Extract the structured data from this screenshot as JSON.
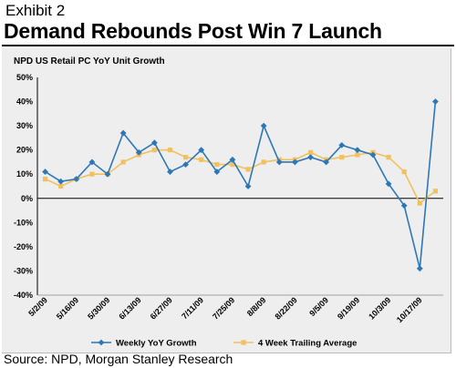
{
  "header": {
    "exhibit": "Exhibit 2",
    "title": "Demand Rebounds Post Win 7 Launch"
  },
  "footer": {
    "source": "Source: NPD, Morgan Stanley Research"
  },
  "chart_data": {
    "type": "line",
    "subtitle": "NPD US Retail PC YoY Unit Growth",
    "ylim": [
      -40,
      50
    ],
    "yticks": [
      "-40%",
      "-30%",
      "-20%",
      "-10%",
      "0%",
      "10%",
      "20%",
      "30%",
      "40%",
      "50%"
    ],
    "ytick_values": [
      -40,
      -30,
      -20,
      -10,
      0,
      10,
      20,
      30,
      40,
      50
    ],
    "x_tick_labels": [
      "5/2/09",
      "5/16/09",
      "5/30/09",
      "6/13/09",
      "6/27/09",
      "7/11/09",
      "7/25/09",
      "8/8/09",
      "8/22/09",
      "9/5/09",
      "9/19/09",
      "10/3/09",
      "10/17/09"
    ],
    "x_tick_every": 2,
    "grid": false,
    "legend_position": "bottom",
    "series": [
      {
        "name": "Weekly YoY Growth",
        "color": "#2e77b6",
        "marker": "diamond",
        "values": [
          11,
          7,
          8,
          15,
          10,
          27,
          19,
          23,
          11,
          14,
          20,
          11,
          16,
          5,
          30,
          15,
          15,
          17,
          15,
          22,
          20,
          18,
          6,
          -3,
          -29,
          40
        ]
      },
      {
        "name": "4 Week Trailing Average",
        "color": "#f2c15f",
        "marker": "square",
        "values": [
          8,
          5,
          8,
          10,
          10,
          15,
          18,
          20,
          20,
          17,
          16,
          14,
          14,
          12,
          15,
          16,
          16,
          19,
          16,
          17,
          18,
          19,
          17,
          11,
          -2,
          3
        ]
      }
    ]
  }
}
